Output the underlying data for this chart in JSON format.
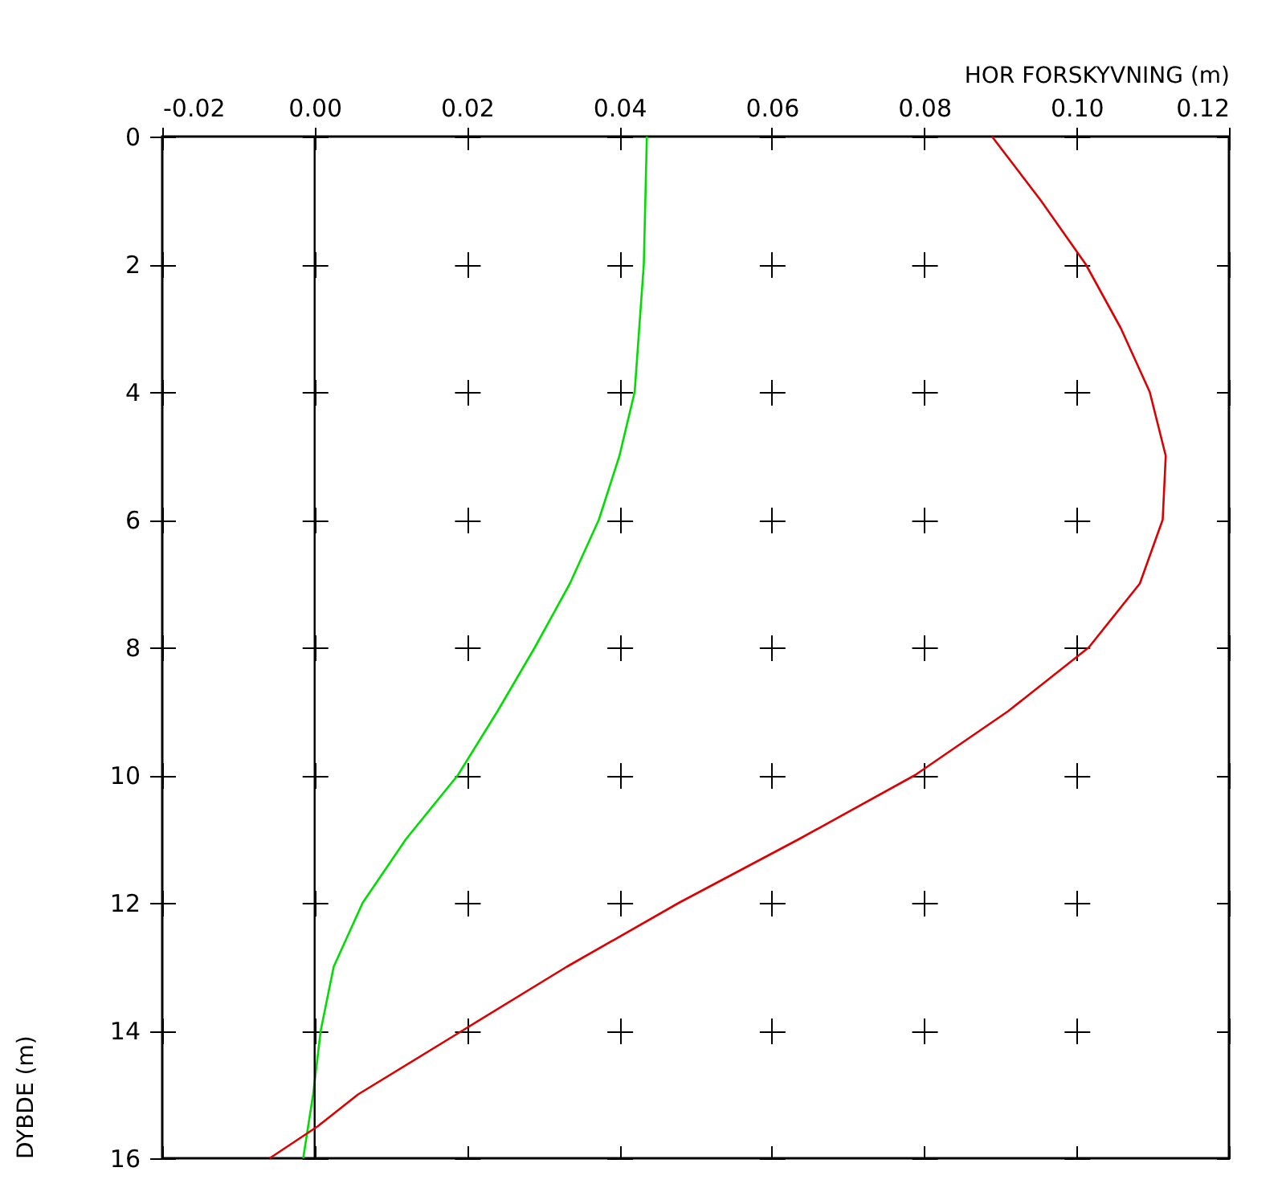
{
  "chart_data": {
    "type": "line",
    "xlabel": "HOR FORSKYVNING (m)",
    "ylabel": "DYBDE (m)",
    "xlim": [
      -0.02,
      0.12
    ],
    "xticks": [
      {
        "value": -0.02,
        "label": "-0.02"
      },
      {
        "value": 0,
        "label": "0.00"
      },
      {
        "value": 0.02,
        "label": "0.02"
      },
      {
        "value": 0.04,
        "label": "0.04"
      },
      {
        "value": 0.06,
        "label": "0.06"
      },
      {
        "value": 0.08,
        "label": "0.08"
      },
      {
        "value": 0.1,
        "label": "0.10"
      },
      {
        "value": 0.12,
        "label": "0.12"
      }
    ],
    "ylim": [
      16,
      0
    ],
    "yticks": [
      0,
      2,
      4,
      6,
      8,
      10,
      12,
      14,
      16
    ],
    "grid": true,
    "marker": "none",
    "line_style": "solid",
    "ref_lines": [
      {
        "axis": "x",
        "value": 0,
        "color": "#000000"
      }
    ],
    "series": [
      {
        "color": "#00dd00",
        "x": [
          0.0436,
          0.0432,
          0.042,
          0.04,
          0.0373,
          0.0335,
          0.0289,
          0.024,
          0.0188,
          0.012,
          0.0063,
          0.0025,
          0.0008,
          -0.0002,
          -0.0015
        ],
        "values": [
          0,
          2,
          4,
          5,
          6,
          7,
          8,
          9,
          10,
          11,
          12,
          13,
          14,
          15,
          16
        ]
      },
      {
        "color": "#dd0000",
        "x": [
          0.0889,
          0.0953,
          0.1012,
          0.1058,
          0.1096,
          0.1117,
          0.1113,
          0.1083,
          0.1016,
          0.091,
          0.0788,
          0.0636,
          0.0478,
          0.0331,
          0.0194,
          0.0057,
          0.0004,
          -0.0059
        ],
        "values": [
          0,
          1,
          2,
          3,
          4,
          5,
          6,
          7,
          8,
          9,
          10,
          11,
          12,
          13,
          14,
          15,
          15.5,
          16
        ]
      }
    ]
  }
}
